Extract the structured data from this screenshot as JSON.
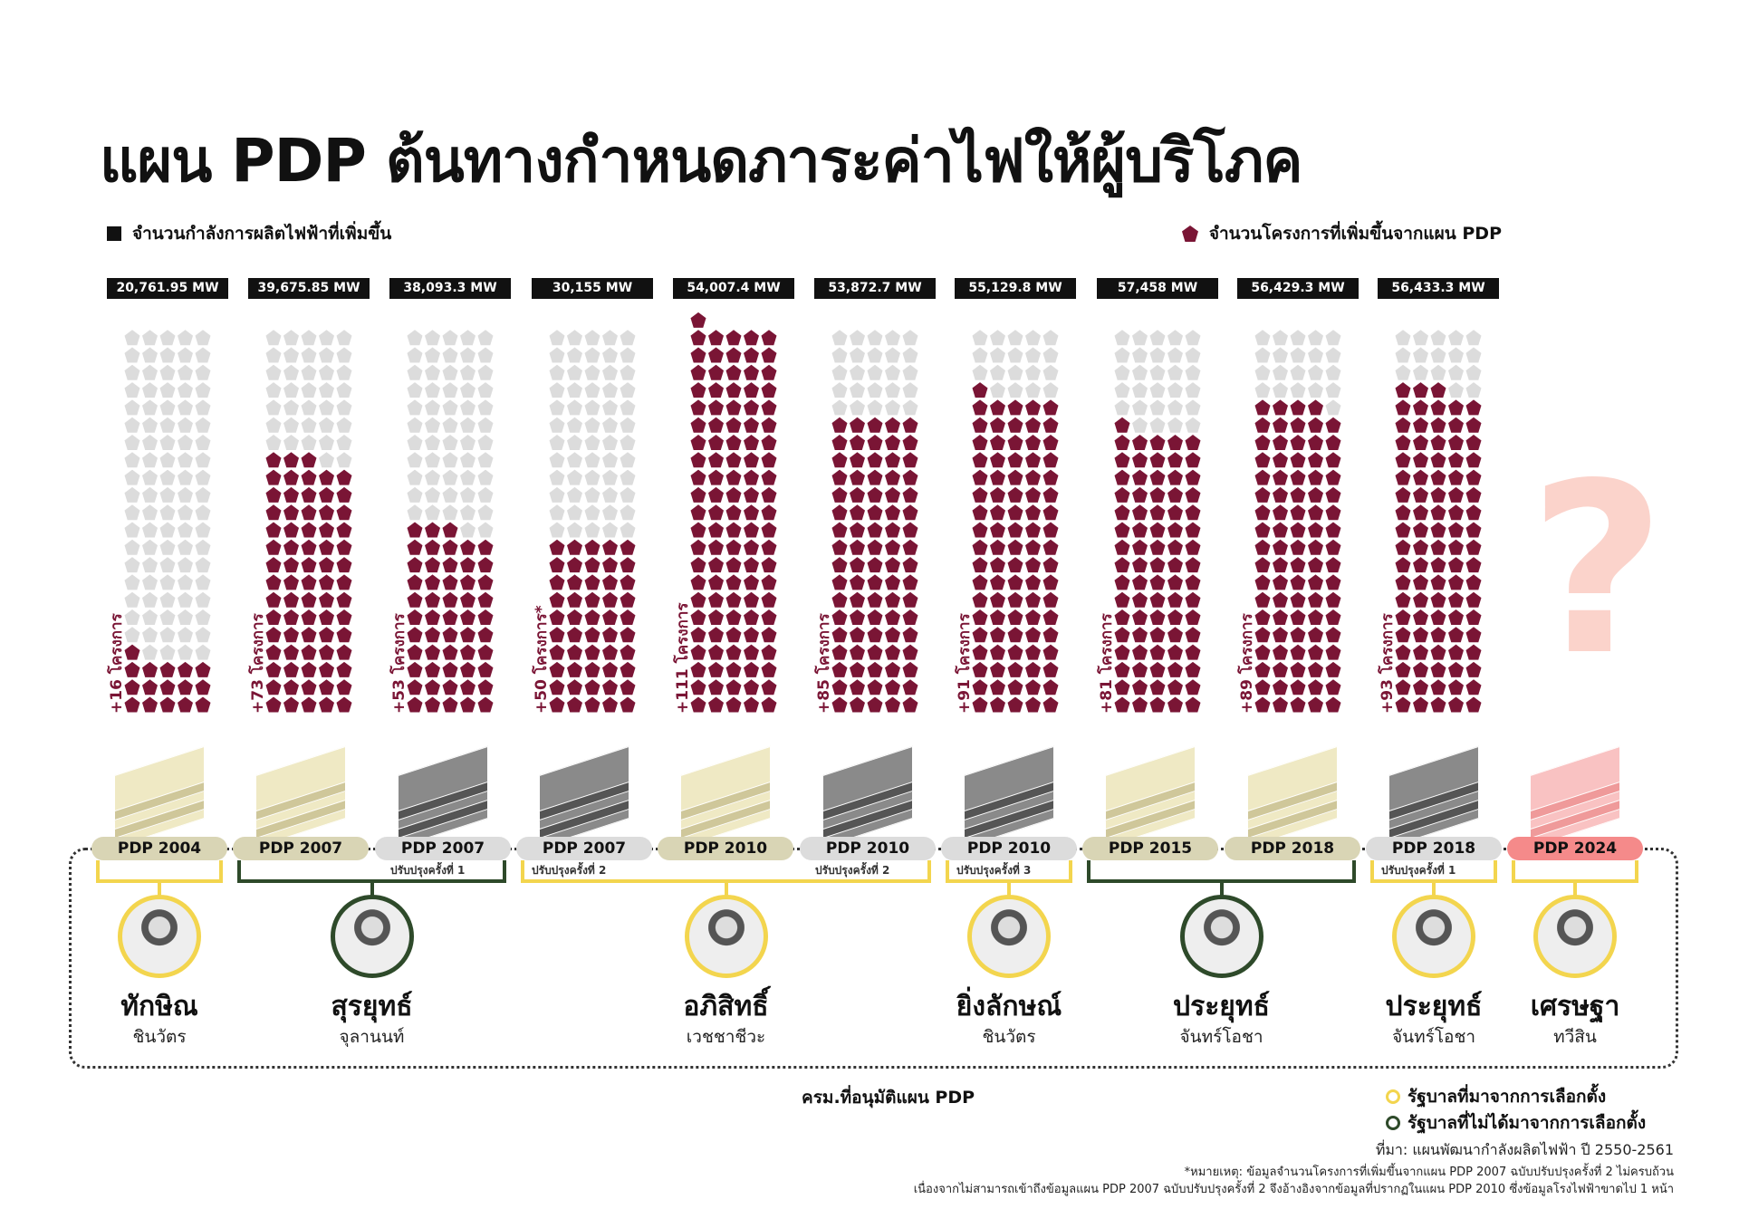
{
  "title": "แผน PDP ต้นทางกำหนดภาระค่าไฟให้ผู้บริโภค",
  "legend": {
    "capacity": "จำนวนกำลังการผลิตไฟฟ้าที่เพิ่มขึ้น",
    "projects": "จำนวนโครงการที่เพิ่มขึ้นจากแผน PDP"
  },
  "colors": {
    "project": "#7a1535",
    "empty": "#dcdcdc",
    "elected": "#f3d54e",
    "unelected": "#2e4a2a",
    "pink": "#f58a8a"
  },
  "chart_data": {
    "type": "pictogram",
    "unit": "1 pentagon = 1 project",
    "categories": [
      "PDP 2004",
      "PDP 2007",
      "PDP 2007 ปรับปรุงครั้งที่ 1",
      "PDP 2007 ปรับปรุงครั้งที่ 2",
      "PDP 2010",
      "PDP 2010 ปรับปรุงครั้งที่ 2",
      "PDP 2010 ปรับปรุงครั้งที่ 3",
      "PDP 2015",
      "PDP 2018",
      "PDP 2018 ปรับปรุงครั้งที่ 1"
    ],
    "projects": [
      16,
      73,
      53,
      50,
      111,
      85,
      91,
      81,
      89,
      93
    ],
    "project_labels": [
      "+16 โครงการ",
      "+73 โครงการ",
      "+53 โครงการ",
      "+50 โครงการ*",
      "+111 โครงการ",
      "+85 โครงการ",
      "+91 โครงการ",
      "+81 โครงการ",
      "+89 โครงการ",
      "+93 โครงการ"
    ],
    "capacity_labels": [
      "20,761.95 MW",
      "39,675.85 MW",
      "38,093.3 MW",
      "30,155 MW",
      "54,007.4 MW",
      "53,872.7 MW",
      "55,129.8 MW",
      "57,458 MW",
      "56,429.3 MW",
      "56,433.3 MW"
    ],
    "capacity_mw": [
      20761.95,
      39675.85,
      38093.3,
      30155,
      54007.4,
      53872.7,
      55129.8,
      57458,
      56429.3,
      56433.3
    ],
    "grid_capacity": 110
  },
  "question_mark": "?",
  "plans": [
    {
      "label": "PDP 2004",
      "sub": "",
      "style": "beige"
    },
    {
      "label": "PDP 2007",
      "sub": "",
      "style": "beige"
    },
    {
      "label": "PDP 2007",
      "sub": "ปรับปรุงครั้งที่ 1",
      "style": "grey"
    },
    {
      "label": "PDP 2007",
      "sub": "ปรับปรุงครั้งที่ 2",
      "style": "grey"
    },
    {
      "label": "PDP 2010",
      "sub": "",
      "style": "beige"
    },
    {
      "label": "PDP 2010",
      "sub": "ปรับปรุงครั้งที่ 2",
      "style": "grey"
    },
    {
      "label": "PDP 2010",
      "sub": "ปรับปรุงครั้งที่ 3",
      "style": "grey"
    },
    {
      "label": "PDP 2015",
      "sub": "",
      "style": "beige"
    },
    {
      "label": "PDP 2018",
      "sub": "",
      "style": "beige"
    },
    {
      "label": "PDP 2018",
      "sub": "ปรับปรุงครั้งที่ 1",
      "style": "grey"
    },
    {
      "label": "PDP 2024",
      "sub": "",
      "style": "pink"
    }
  ],
  "pms": [
    {
      "name": "ทักษิณ",
      "surname": "ชินวัตร",
      "elected": true,
      "plans": [
        0,
        0
      ]
    },
    {
      "name": "สุรยุทธ์",
      "surname": "จุลานนท์",
      "elected": false,
      "plans": [
        1,
        2
      ]
    },
    {
      "name": "อภิสิทธิ์",
      "surname": "เวชชาชีวะ",
      "elected": true,
      "plans": [
        3,
        5
      ]
    },
    {
      "name": "ยิ่งลักษณ์",
      "surname": "ชินวัตร",
      "elected": true,
      "plans": [
        6,
        6
      ]
    },
    {
      "name": "ประยุทธ์",
      "surname": "จันทร์โอชา",
      "elected": false,
      "plans": [
        7,
        8
      ]
    },
    {
      "name": "ประยุทธ์",
      "surname": "จันทร์โอชา",
      "elected": true,
      "plans": [
        9,
        9
      ]
    },
    {
      "name": "เศรษฐา",
      "surname": "ทวีสิน",
      "elected": true,
      "plans": [
        10,
        10
      ]
    }
  ],
  "footer": {
    "caption": "ครม.ที่อนุมัติแผน PDP",
    "legend_elected": "รัฐบาลที่มาจากการเลือกตั้ง",
    "legend_unelected": "รัฐบาลที่ไม่ได้มาจากการเลือกตั้ง",
    "source": "ที่มา: แผนพัฒนากำลังผลิตไฟฟ้า ปี 2550-2561",
    "note1": "*หมายเหตุ: ข้อมูลจำนวนโครงการที่เพิ่มขึ้นจากแผน PDP 2007 ฉบับปรับปรุงครั้งที่ 2 ไม่ครบถ้วน",
    "note2": "เนื่องจากไม่สามารถเข้าถึงข้อมูลแผน PDP 2007 ฉบับปรับปรุงครั้งที่ 2 จึงอ้างอิงจากข้อมูลที่ปรากฏในแผน PDP 2010 ซึ่งข้อมูลโรงไฟฟ้าขาดไป 1 หน้า"
  }
}
